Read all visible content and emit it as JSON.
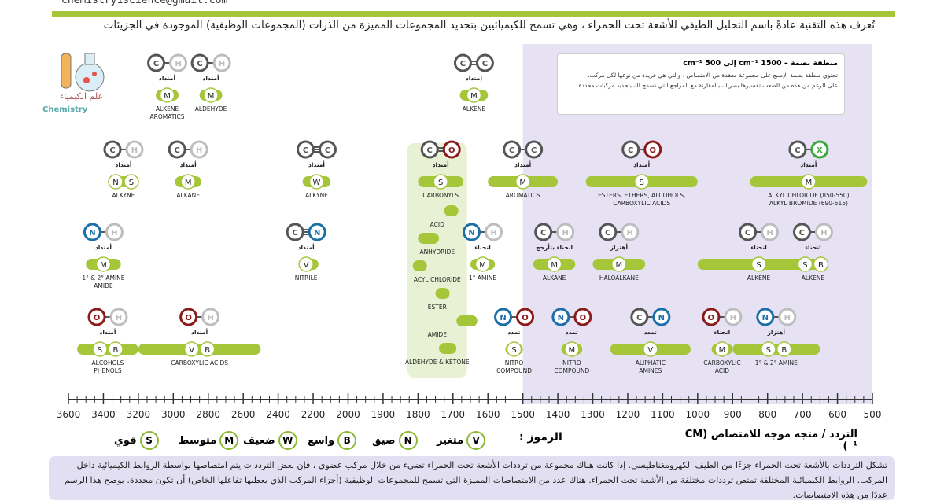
{
  "header": {
    "email": "chemistry1science@gmail.com",
    "intro": "تُعرف هذه التقنية عادةً باسم التحليل الطيفي للأشعة تحت الحمراء ، وهي تسمح للكيميائيين بتحديد المجموعات المميزة من الذرات (المجموعات الوظيفية) الموجودة في الجزيئات"
  },
  "logo": {
    "label": "علم الكيمياء",
    "en": "Chemistry"
  },
  "region_box": {
    "title": "منطقة بصمة – 1500 cm⁻¹ إلى 500 cm⁻¹",
    "line1": "تحتوي منطقة بصمة الإصبع على مجموعة معقدة من الامتصاص ، والتي هي فريدة من نوعها لكل مركب.",
    "line2": "على الرغم من هذه من الصعب تفسيرها بصريا ، بالمقارنة مع المراجع التي تسمح لك بتحديد مركبات محددة."
  },
  "colors": {
    "accent": "#a6c63a",
    "bar": "#a6c63a",
    "region": "#e6e2f4",
    "carbon": "#555555",
    "hydrogen": "#bdbdbd",
    "oxygen": "#8b1a1a",
    "nitrogen": "#1b6fa8",
    "halogen": "#3aa63a"
  },
  "chart_data": {
    "type": "bar",
    "xlabel": "التردد / متجه موجه للامتصاص (CM ⁻¹)",
    "xlim": [
      3600,
      500
    ],
    "xticks": [
      3600,
      3400,
      3200,
      3000,
      2800,
      2600,
      2400,
      2200,
      2000,
      1900,
      1800,
      1700,
      1600,
      1500,
      1400,
      1300,
      1200,
      1100,
      1000,
      900,
      800,
      700,
      600,
      500
    ],
    "fingerprint_region": [
      1500,
      500
    ],
    "bands": [
      {
        "row": 1,
        "from": 3100,
        "to": 2970,
        "intensity": "M",
        "names": [
          "ALKENE",
          "AROMATICS"
        ],
        "bond": [
          "C",
          "H"
        ],
        "vib": "أمتداد"
      },
      {
        "row": 1,
        "from": 2850,
        "to": 2720,
        "intensity": "M",
        "names": [
          "ALDEHYDE"
        ],
        "bond": [
          "C",
          "H"
        ],
        "vib": "أمتداد"
      },
      {
        "row": 1,
        "from": 1680,
        "to": 1600,
        "intensity": "M",
        "names": [
          "ALKENE"
        ],
        "bond": [
          "C",
          "C"
        ],
        "vib": "إمتداد",
        "double": true
      },
      {
        "row": 2,
        "from": 3320,
        "to": 3250,
        "intensity": "NS",
        "names": [
          "ALKYNE"
        ],
        "bond": [
          "C",
          "H"
        ],
        "vib": "أمتداد"
      },
      {
        "row": 2,
        "from": 2990,
        "to": 2840,
        "intensity": "M",
        "names": [
          "ALKANE"
        ],
        "bond": [
          "C",
          "H"
        ],
        "vib": "أمتداد"
      },
      {
        "row": 2,
        "from": 2260,
        "to": 2100,
        "intensity": "W",
        "names": [
          "ALKYNE"
        ],
        "bond": [
          "C",
          "C"
        ],
        "vib": "أمتداد",
        "triple": true
      },
      {
        "row": 2,
        "from": 1800,
        "to": 1670,
        "intensity": "S",
        "names": [
          "CARBONYLS"
        ],
        "bond": [
          "C",
          "O"
        ],
        "vib": "أمتداد",
        "double": true
      },
      {
        "row": 2,
        "from": 1600,
        "to": 1400,
        "intensity": "M",
        "names": [
          "AROMATICS"
        ],
        "bond": [
          "C",
          "C"
        ],
        "vib": "أمتداد"
      },
      {
        "row": 2,
        "from": 1320,
        "to": 1000,
        "intensity": "S",
        "names": [
          "ESTERS, ETHERS, ALCOHOLS,",
          "CARBOXYLIC ACIDS"
        ],
        "bond": [
          "C",
          "O"
        ],
        "vib": "أمتداد"
      },
      {
        "row": 2,
        "from": 850,
        "to": 515,
        "intensity": "M",
        "names": [
          "ALKYL CHLORIDE (850-550)",
          "ALKYL BROMIDE (690-515)"
        ],
        "bond": [
          "C",
          "X"
        ],
        "vib": "أمتداد"
      },
      {
        "row": 3,
        "from": 3500,
        "to": 3300,
        "intensity": "M",
        "names": [
          "1° & 2° AMINE",
          "AMIDE"
        ],
        "bond": [
          "N",
          "H"
        ],
        "vib": "أمتداد"
      },
      {
        "row": 3,
        "from": 2260,
        "to": 2220,
        "intensity": "V",
        "names": [
          "NITRILE"
        ],
        "bond": [
          "C",
          "N"
        ],
        "vib": "أمتداد",
        "triple": true
      },
      {
        "row": 3,
        "from": 1650,
        "to": 1580,
        "intensity": "M",
        "names": [
          "1° AMINE"
        ],
        "bond": [
          "N",
          "H"
        ],
        "vib": "انحناء"
      },
      {
        "row": 3,
        "from": 1470,
        "to": 1350,
        "intensity": "M",
        "names": [
          "ALKANE"
        ],
        "bond": [
          "C",
          "H"
        ],
        "vib": "انحناء بتأرجح"
      },
      {
        "row": 3,
        "from": 1300,
        "to": 1150,
        "intensity": "M",
        "names": [
          "HALOALKANE"
        ],
        "bond": [
          "C",
          "H"
        ],
        "vib": "أهتزاز"
      },
      {
        "row": 3,
        "from": 1000,
        "to": 650,
        "intensity": "S",
        "names": [
          "ALKENE"
        ],
        "bond": [
          "C",
          "H"
        ],
        "vib": "انحناء"
      },
      {
        "row": 3,
        "from": 690,
        "to": 650,
        "intensity": "SB",
        "names": [
          "ALKENE"
        ],
        "bond": [
          "C",
          "H"
        ],
        "vib": "انحناء"
      },
      {
        "row": 4,
        "from": 3550,
        "to": 3200,
        "intensity": "SB",
        "names": [
          "ALCOHOLS",
          "PHENOLS"
        ],
        "bond": [
          "O",
          "H"
        ],
        "vib": "أمتداد"
      },
      {
        "row": 4,
        "from": 3200,
        "to": 2500,
        "intensity": "VB",
        "names": [
          "CARBOXYLIC ACIDS"
        ],
        "bond": [
          "O",
          "H"
        ],
        "vib": "أمتداد"
      },
      {
        "row": 4,
        "from": 1550,
        "to": 1500,
        "intensity": "S",
        "names": [
          "NITRO",
          "COMPOUND"
        ],
        "bond": [
          "N",
          "O"
        ],
        "vib": "تمدد"
      },
      {
        "row": 4,
        "from": 1390,
        "to": 1330,
        "intensity": "M",
        "names": [
          "NITRO",
          "COMPOUND"
        ],
        "bond": [
          "N",
          "O"
        ],
        "vib": "تمدد"
      },
      {
        "row": 4,
        "from": 1250,
        "to": 1020,
        "intensity": "V",
        "names": [
          "ALIPHATIC",
          "AMINES"
        ],
        "bond": [
          "C",
          "N"
        ],
        "vib": "تمدد"
      },
      {
        "row": 4,
        "from": 960,
        "to": 900,
        "intensity": "M",
        "names": [
          "CARBOXYLIC",
          "ACID"
        ],
        "bond": [
          "O",
          "H"
        ],
        "vib": "انحناء"
      },
      {
        "row": 4,
        "from": 900,
        "to": 650,
        "intensity": "SB",
        "names": [
          "1° & 2° AMINE"
        ],
        "bond": [
          "N",
          "H"
        ],
        "vib": "أهتزاز"
      }
    ],
    "carbonyls": [
      {
        "name": "ACID",
        "from": 1725,
        "to": 1700
      },
      {
        "name": "ANHYDRIDE",
        "from": 1800,
        "to": 1740
      },
      {
        "name": "ACYL CHLORIDE",
        "from": 1815,
        "to": 1785
      },
      {
        "name": "ESTER",
        "from": 1750,
        "to": 1730
      },
      {
        "name": "AMIDE",
        "from": 1690,
        "to": 1630
      },
      {
        "name": "ALDEHYDE & KETONE",
        "from": 1740,
        "to": 1690
      }
    ]
  },
  "legend": {
    "title": "الرموز :",
    "items": [
      {
        "code": "V",
        "label": "متغير"
      },
      {
        "code": "N",
        "label": "ضيق"
      },
      {
        "code": "B",
        "label": "واسع"
      },
      {
        "code": "W",
        "label": "ضعيف"
      },
      {
        "code": "M",
        "label": "متوسط"
      },
      {
        "code": "S",
        "label": "قوي"
      }
    ]
  },
  "footnote": {
    "line1": "تشكل الترددات بالأشعة تحت الحمراء جزءًا من الطيف الكهرومغناطيسي. إذا كانت هناك مجموعة من ترددات الأشعة تحت الحمراء تضيء من خلال مركب عضوي ، فإن بعض الترددات يتم امتصاصها بواسطة الروابط الكيميائية داخل",
    "line2": "المركب. الروابط الكيميائية المختلفة تمتص ترددات مختلفة من الأشعة تحت الحمراء. هناك عدد من الامتصاصات المميزة التي تسمح للمجموعات الوظيفية (أجزاء المركب الذي يعطيها تفاعلها الخاص) أن تكون محددة.  يوضح هذا الرسم",
    "line3": "عددًا من هذه الامتصاصات."
  }
}
